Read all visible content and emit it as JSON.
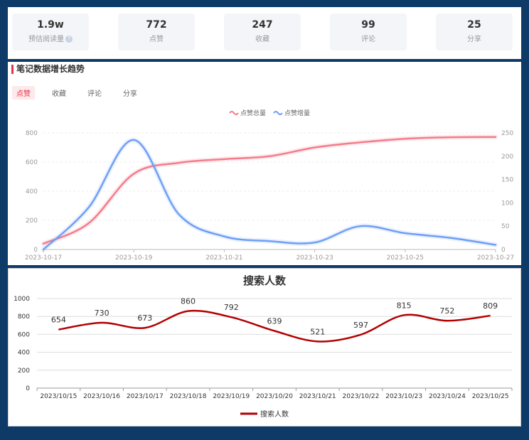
{
  "stats": [
    {
      "value": "1.9w",
      "label": "预估阅读量",
      "help_icon": "question-circle-icon"
    },
    {
      "value": "772",
      "label": "点赞"
    },
    {
      "value": "247",
      "label": "收藏"
    },
    {
      "value": "99",
      "label": "评论"
    },
    {
      "value": "25",
      "label": "分享"
    }
  ],
  "trend": {
    "title": "笔记数据增长趋势",
    "tabs": [
      "点赞",
      "收藏",
      "评论",
      "分享"
    ],
    "active_tab": "点赞"
  },
  "chart_data": [
    {
      "type": "line",
      "title": "",
      "x": [
        "2023-10-17",
        "2023-10-18",
        "2023-10-19",
        "2023-10-20",
        "2023-10-21",
        "2023-10-22",
        "2023-10-23",
        "2023-10-24",
        "2023-10-25",
        "2023-10-26",
        "2023-10-27"
      ],
      "x_tick_labels": [
        "2023-10-17",
        "2023-10-19",
        "2023-10-21",
        "2023-10-23",
        "2023-10-25",
        "2023-10-27"
      ],
      "series": [
        {
          "name": "点赞总量",
          "axis": "left",
          "color": "#f47c8a",
          "values": [
            40,
            180,
            520,
            595,
            620,
            640,
            700,
            735,
            760,
            770,
            772
          ]
        },
        {
          "name": "点赞增量",
          "axis": "right",
          "color": "#6f9ff5",
          "values": [
            0,
            90,
            235,
            75,
            28,
            18,
            15,
            50,
            35,
            25,
            10
          ]
        }
      ],
      "ylim_left": [
        0,
        800
      ],
      "yticks_left": [
        0,
        200,
        400,
        600,
        800
      ],
      "ylim_right": [
        0,
        250
      ],
      "yticks_right": [
        0,
        50,
        100,
        150,
        200,
        250
      ],
      "legend": "top-center",
      "grid": true
    },
    {
      "type": "line",
      "title": "搜索人数",
      "x": [
        "2023/10/15",
        "2023/10/16",
        "2023/10/17",
        "2023/10/18",
        "2023/10/19",
        "2023/10/20",
        "2023/10/21",
        "2023/10/22",
        "2023/10/23",
        "2023/10/24",
        "2023/10/25"
      ],
      "series": [
        {
          "name": "搜索人数",
          "color": "#b30000",
          "values": [
            654,
            730,
            673,
            860,
            792,
            639,
            521,
            597,
            815,
            752,
            809
          ]
        }
      ],
      "ylim": [
        0,
        1000
      ],
      "yticks": [
        0,
        200,
        400,
        600,
        800,
        1000
      ],
      "legend": "bottom-center",
      "grid": true,
      "data_labels": true
    }
  ]
}
